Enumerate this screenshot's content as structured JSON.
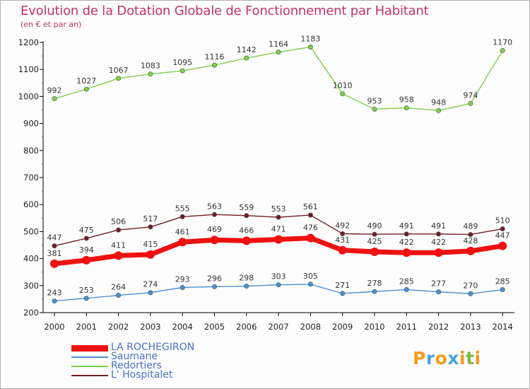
{
  "title": "Evolution de la Dotation Globale de Fonctionnement par Habitant",
  "subtitle": "(en € et par an)",
  "logo": {
    "text": "Proxiti",
    "letter_colors": [
      "#f59a1c",
      "#4aa3df",
      "#f59a1c",
      "#4aa3df",
      "#f59a1c",
      "#7ab648",
      "#f59a1c"
    ]
  },
  "chart_data": {
    "type": "line",
    "x": [
      2000,
      2001,
      2002,
      2003,
      2004,
      2005,
      2006,
      2007,
      2008,
      2009,
      2010,
      2011,
      2012,
      2013,
      2014
    ],
    "ylim": [
      200,
      1200
    ],
    "yticks": [
      200,
      300,
      400,
      500,
      600,
      700,
      800,
      900,
      1000,
      1100,
      1200
    ],
    "grid": false,
    "legend_position": "bottom-left",
    "series": [
      {
        "name": "LA ROCHEGIRON",
        "color": "#ee1111",
        "emphasis": "bold",
        "values": [
          381,
          394,
          411,
          415,
          461,
          469,
          466,
          471,
          476,
          431,
          425,
          422,
          422,
          428,
          447
        ]
      },
      {
        "name": "Saumane",
        "color": "#4a90d0",
        "emphasis": "normal",
        "values": [
          243,
          253,
          264,
          274,
          293,
          296,
          298,
          303,
          305,
          271,
          278,
          285,
          277,
          270,
          285
        ]
      },
      {
        "name": "Redortiers",
        "color": "#7ed04a",
        "emphasis": "normal",
        "values": [
          992,
          1027,
          1067,
          1083,
          1095,
          1116,
          1142,
          1164,
          1183,
          1010,
          953,
          958,
          948,
          974,
          1170
        ]
      },
      {
        "name": "L' Hospitalet",
        "color": "#6e1f24",
        "emphasis": "normal",
        "values": [
          447,
          475,
          506,
          517,
          555,
          563,
          559,
          553,
          561,
          492,
          490,
          491,
          491,
          489,
          510
        ]
      }
    ]
  }
}
